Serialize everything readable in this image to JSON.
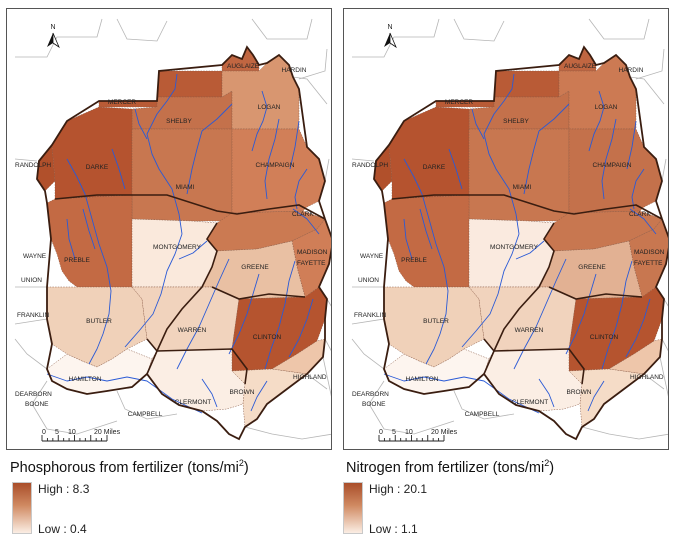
{
  "maps": [
    {
      "caption_text": "Phosphorous from fertilizer (tons/mi",
      "caption_sup": "2",
      "caption_close": ")",
      "legend": {
        "high": "High : 8.3",
        "low": "Low : 0.4",
        "color_high": "#a94e2a",
        "color_low": "#fbeee4"
      },
      "fills": {
        "auglaize": "#c06641",
        "mercer": "#b95b36",
        "shelby": "#c4714b",
        "logan": "#d89670",
        "randolph": "#b1502b",
        "darke": "#b5532f",
        "miami": "#c87750",
        "champaign": "#d17f58",
        "preble": "#c36a44",
        "montgomery": "#fae9dc",
        "clark": "#cb7a52",
        "greene": "#e9c0a3",
        "madison": "#d07e57",
        "butler": "#f0d1b9",
        "warren": "#f1d3bd",
        "clinton": "#b5542f",
        "highland": "#eec6aa",
        "hamilton": "#fdf5ef",
        "clermont": "#fbeee4",
        "brown": "#f5dcc7",
        "outline": "#3a1d10"
      }
    },
    {
      "caption_text": "Nitrogen from fertilizer (tons/mi",
      "caption_sup": "2",
      "caption_close": ")",
      "legend": {
        "high": "High : 20.1",
        "low": "Low : 1.1",
        "color_high": "#a94e2a",
        "color_low": "#fbeee4"
      },
      "fills": {
        "auglaize": "#c06641",
        "mercer": "#b95b36",
        "shelby": "#c4714b",
        "logan": "#cc7a53",
        "randolph": "#b1502b",
        "darke": "#b5532f",
        "miami": "#c87750",
        "champaign": "#c4714b",
        "preble": "#c36a44",
        "montgomery": "#faeadf",
        "clark": "#c87750",
        "greene": "#e2b193",
        "madison": "#c87750",
        "butler": "#f0d1b9",
        "warren": "#f1d3bd",
        "clinton": "#b5542f",
        "highland": "#eec6aa",
        "hamilton": "#fdf5ef",
        "clermont": "#fbeee4",
        "brown": "#f5dcc7",
        "outline": "#3a1d10"
      }
    }
  ],
  "county_labels": {
    "auglaize": "AUGLAIZE",
    "hardin": "HARDIN",
    "mercer": "MERCER",
    "shelby": "SHELBY",
    "logan": "LOGAN",
    "randolph": "RANDOLPH",
    "darke": "DARKE",
    "miami": "MIAMI",
    "champaign": "CHAMPAIGN",
    "clark": "CLARK",
    "wayne": "WAYNE",
    "preble": "PREBLE",
    "montgomery": "MONTGOMERY",
    "madison": "MADISON",
    "fayette": "FAYETTE",
    "greene": "GREENE",
    "union": "UNION",
    "franklin": "FRANKLIN",
    "butler": "BUTLER",
    "warren": "WARREN",
    "clinton": "CLINTON",
    "highland": "HIGHLAND",
    "dearborn": "DEARBORN",
    "boone": "BOONE",
    "hamilton": "HAMILTON",
    "clermont": "CLERMONT",
    "brown": "BROWN",
    "campbell": "CAMPBELL"
  },
  "north_arrow": "N",
  "scale_bar": {
    "ticks": [
      "0",
      "5",
      "10",
      "20 Miles"
    ]
  }
}
